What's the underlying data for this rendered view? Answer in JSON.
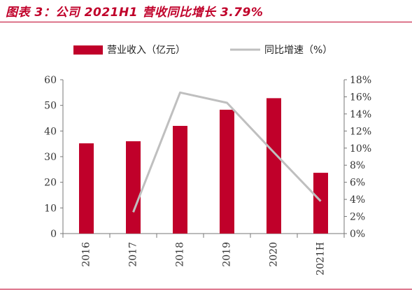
{
  "title": "图表 3：公司 2021H1 营收同比增长 3.79%",
  "chart_data": {
    "type": "bar+line",
    "categories": [
      "2016",
      "2017",
      "2018",
      "2019",
      "2020",
      "2021H"
    ],
    "series": [
      {
        "name": "营业收入（亿元）",
        "type": "bar",
        "axis": "left",
        "values": [
          35.2,
          36.0,
          42.0,
          48.3,
          52.8,
          23.7
        ],
        "color": "#c0002a"
      },
      {
        "name": "同比增速（%）",
        "type": "line",
        "axis": "right",
        "values": [
          null,
          2.5,
          16.5,
          15.3,
          9.5,
          3.79
        ],
        "color": "#bfbfbf"
      }
    ],
    "left_axis": {
      "min": 0,
      "max": 60,
      "ticks": [
        "0",
        "10",
        "20",
        "30",
        "40",
        "50",
        "60"
      ]
    },
    "right_axis": {
      "min": 0,
      "max": 18,
      "ticks": [
        "0%",
        "2%",
        "4%",
        "6%",
        "8%",
        "10%",
        "12%",
        "14%",
        "16%",
        "18%"
      ]
    },
    "legend_position": "top",
    "grid": false
  }
}
